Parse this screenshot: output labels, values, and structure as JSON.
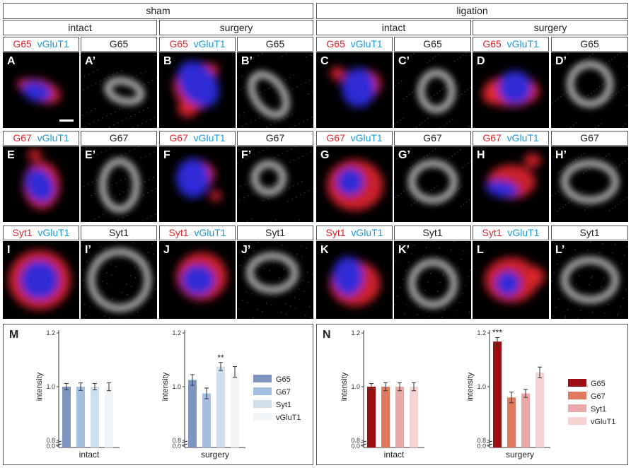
{
  "headers": {
    "sham": "sham",
    "ligation": "ligation",
    "intact": "intact",
    "surgery": "surgery"
  },
  "rows": [
    {
      "marker": "G65",
      "panels": [
        {
          "merge_letter": "A",
          "gray_letter": "A’"
        },
        {
          "merge_letter": "B",
          "gray_letter": "B’"
        },
        {
          "merge_letter": "C",
          "gray_letter": "C’"
        },
        {
          "merge_letter": "D",
          "gray_letter": "D’"
        }
      ]
    },
    {
      "marker": "G67",
      "panels": [
        {
          "merge_letter": "E",
          "gray_letter": "E’"
        },
        {
          "merge_letter": "F",
          "gray_letter": "F’"
        },
        {
          "merge_letter": "G",
          "gray_letter": "G’"
        },
        {
          "merge_letter": "H",
          "gray_letter": "H’"
        }
      ]
    },
    {
      "marker": "Syt1",
      "panels": [
        {
          "merge_letter": "I",
          "gray_letter": "I’"
        },
        {
          "merge_letter": "J",
          "gray_letter": "J’"
        },
        {
          "merge_letter": "K",
          "gray_letter": "K’"
        },
        {
          "merge_letter": "L",
          "gray_letter": "L’"
        }
      ]
    }
  ],
  "counterstain": "vGluT1",
  "colors": {
    "marker_red": "#e0262b",
    "counterstain_blue": "#1a9ad6"
  },
  "chart_data": [
    {
      "panel_letter": "M",
      "type": "bar",
      "ylabel": "intensity",
      "y_ticks": [
        "0.0",
        "0.8",
        "1.0",
        "1.2"
      ],
      "ylim_broken": [
        0.8,
        1.2
      ],
      "legend": [
        "G65",
        "G67",
        "Syt1",
        "vGluT1"
      ],
      "colors": [
        "#7f95c1",
        "#a3bfe0",
        "#cfe0ec",
        "#f2f5f8"
      ],
      "groups": [
        {
          "name": "intact",
          "values": [
            1.0,
            1.0,
            1.0,
            1.0
          ],
          "errors": [
            0.012,
            0.014,
            0.012,
            0.015
          ],
          "stars": [
            "",
            "",
            "",
            ""
          ]
        },
        {
          "name": "surgery",
          "values": [
            1.025,
            0.975,
            1.075,
            1.055
          ],
          "errors": [
            0.02,
            0.02,
            0.015,
            0.02
          ],
          "stars": [
            "",
            "",
            "**",
            ""
          ]
        }
      ]
    },
    {
      "panel_letter": "N",
      "type": "bar",
      "ylabel": "intensity",
      "y_ticks": [
        "0.0",
        "0.8",
        "1.0",
        "1.2"
      ],
      "ylim_broken": [
        0.8,
        1.2
      ],
      "legend": [
        "G65",
        "G67",
        "Syt1",
        "vGluT1"
      ],
      "colors": [
        "#9b0e12",
        "#e07a5e",
        "#eaa8a8",
        "#f5d3d3"
      ],
      "groups": [
        {
          "name": "intact",
          "values": [
            1.0,
            1.0,
            1.0,
            1.0
          ],
          "errors": [
            0.012,
            0.015,
            0.015,
            0.015
          ],
          "stars": [
            "",
            "",
            "",
            ""
          ]
        },
        {
          "name": "surgery",
          "values": [
            1.168,
            0.96,
            0.975,
            1.053
          ],
          "errors": [
            0.015,
            0.02,
            0.015,
            0.02
          ],
          "stars": [
            "***",
            "",
            "",
            ""
          ]
        }
      ]
    }
  ]
}
